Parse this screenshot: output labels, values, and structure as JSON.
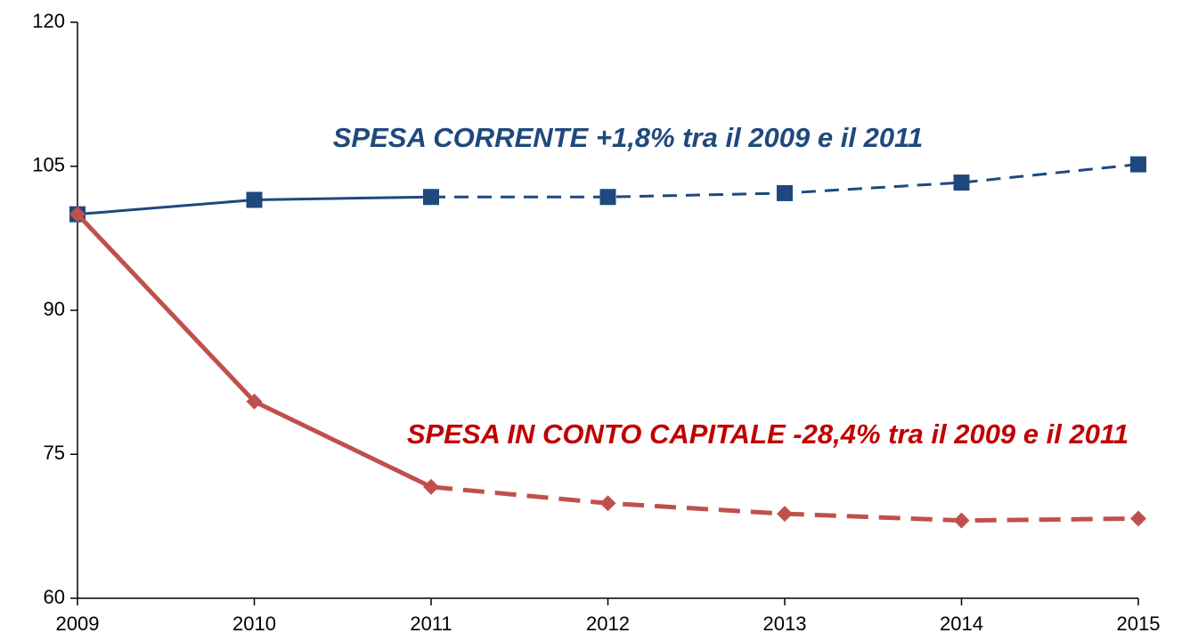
{
  "chart_data": {
    "type": "line",
    "x": [
      2009,
      2010,
      2011,
      2012,
      2013,
      2014,
      2015
    ],
    "xlim": [
      2009,
      2015
    ],
    "xticks": [
      2009,
      2010,
      2011,
      2012,
      2013,
      2014,
      2015
    ],
    "ylim": [
      60,
      120
    ],
    "yticks": [
      60,
      75,
      90,
      105,
      120
    ],
    "grid": false,
    "dashed_from_x": 2011,
    "series": [
      {
        "color": "#1f497d",
        "marker": "square",
        "values": [
          100,
          101.5,
          101.8,
          101.8,
          102.2,
          103.3,
          105.2
        ]
      },
      {
        "color": "#c0504d",
        "marker": "diamond",
        "values": [
          100,
          80.5,
          71.6,
          69.9,
          68.8,
          68.1,
          68.3
        ]
      }
    ],
    "annotations": [
      {
        "text": "SPESA  CORRENTE  +1,8% tra il 2009 e il 2011",
        "color": "#1f497d"
      },
      {
        "text": "SPESA IN CONTO CAPITALE  -28,4% tra il 2009 e il 2011",
        "color": "#c00000"
      }
    ]
  }
}
